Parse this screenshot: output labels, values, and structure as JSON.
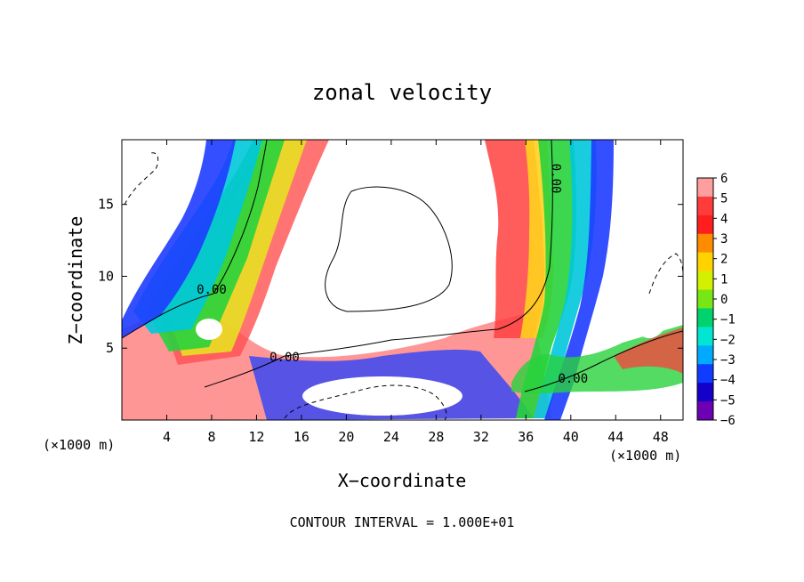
{
  "chart_data": {
    "type": "heatmap",
    "title": "zonal velocity",
    "xlabel": "X−coordinate",
    "ylabel": "Z−coordinate",
    "x_unit_label": "(×1000 m)",
    "y_unit_label": "(×1000 m)",
    "footer": "CONTOUR INTERVAL = 1.000E+01",
    "xlim": [
      0,
      50
    ],
    "ylim": [
      0,
      19.5
    ],
    "x_ticks": [
      4,
      8,
      12,
      16,
      20,
      24,
      28,
      32,
      36,
      40,
      44,
      48
    ],
    "y_ticks": [
      5,
      10,
      15
    ],
    "colorbar": {
      "ticks": [
        "6",
        "5",
        "4",
        "3",
        "2",
        "1",
        "0",
        "−1",
        "−2",
        "−3",
        "−4",
        "−5",
        "−6"
      ],
      "colors": [
        "#ff9e9e",
        "#ff3c3c",
        "#ff1e1e",
        "#ff8c00",
        "#ffd200",
        "#d2f000",
        "#78e614",
        "#00d26e",
        "#00e6d2",
        "#00aaff",
        "#0f3cff",
        "#1400c8",
        "#6e00b4"
      ]
    },
    "contour_labels": [
      {
        "text": "0.00",
        "x": 8.0,
        "z": 8.8
      },
      {
        "text": "0.00",
        "x": 14.5,
        "z": 4.1
      },
      {
        "text": "0.00",
        "x": 38.3,
        "z": 16.8
      },
      {
        "text": "0.00",
        "x": 40.2,
        "z": 2.6
      }
    ]
  }
}
